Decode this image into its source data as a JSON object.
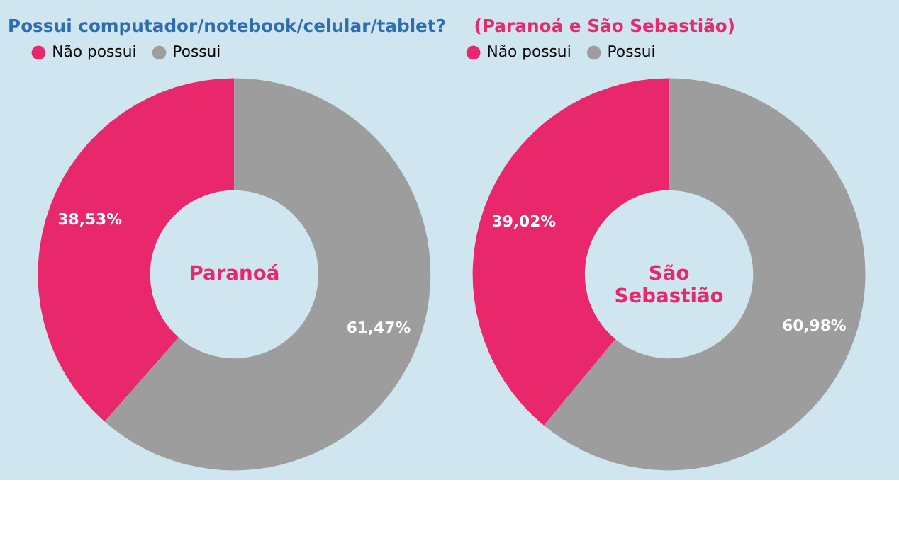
{
  "chart_data": [
    {
      "type": "donut",
      "title": "Possui computador/notebook/celular/tablet?",
      "categories": [
        "Não possui",
        "Possui"
      ],
      "values": [
        38.53,
        61.47
      ],
      "colors": [
        "#e8286b",
        "#9d9d9d"
      ],
      "value_labels": [
        "38,53%",
        "61,47%"
      ],
      "annotations": [
        "Paranoá"
      ],
      "legend": "top"
    },
    {
      "type": "donut",
      "subtitle": "(Paranoá e São Sebastião)",
      "categories": [
        "Não possui",
        "Possui"
      ],
      "values": [
        39.02,
        60.98
      ],
      "colors": [
        "#e8286b",
        "#9d9d9d"
      ],
      "value_labels": [
        "39,02%",
        "60,98%"
      ],
      "annotations": [
        "São Sebastião"
      ],
      "legend": "top"
    }
  ]
}
